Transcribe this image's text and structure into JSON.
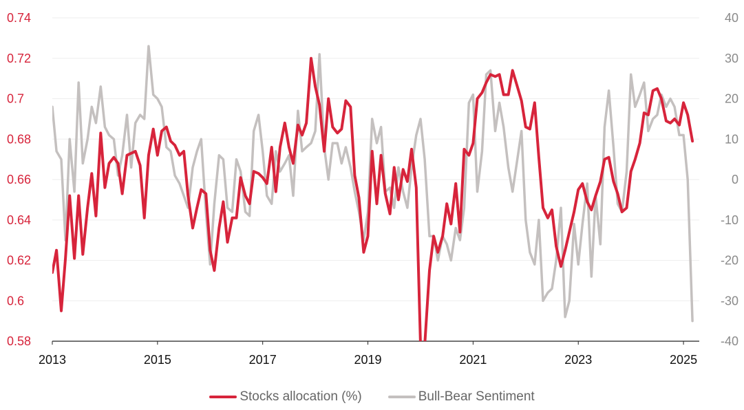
{
  "chart_data": {
    "type": "line",
    "x_range": [
      2013,
      2025.3
    ],
    "x_ticks": [
      "2013",
      "2015",
      "2017",
      "2019",
      "2021",
      "2023",
      "2025"
    ],
    "y_left": {
      "range": [
        0.58,
        0.74
      ],
      "ticks": [
        "0.58",
        "0.6",
        "0.62",
        "0.64",
        "0.66",
        "0.68",
        "0.7",
        "0.72",
        "0.74"
      ],
      "color": "#d7243b"
    },
    "y_right": {
      "range": [
        -40,
        40
      ],
      "ticks": [
        "-40",
        "-30",
        "-20",
        "-10",
        "0",
        "10",
        "20",
        "30",
        "40"
      ],
      "color": "#8a8a8a"
    },
    "grid": "horizontal",
    "legend_position": "bottom-center",
    "series": [
      {
        "name": "Stocks allocation (%)",
        "axis": "left",
        "color": "#d7243b",
        "x": [
          2013.0,
          2013.08,
          2013.17,
          2013.25,
          2013.33,
          2013.42,
          2013.5,
          2013.58,
          2013.67,
          2013.75,
          2013.83,
          2013.92,
          2014.0,
          2014.08,
          2014.17,
          2014.25,
          2014.33,
          2014.42,
          2014.5,
          2014.58,
          2014.67,
          2014.75,
          2014.83,
          2014.92,
          2015.0,
          2015.08,
          2015.17,
          2015.25,
          2015.33,
          2015.42,
          2015.5,
          2015.58,
          2015.67,
          2015.75,
          2015.83,
          2015.92,
          2016.0,
          2016.08,
          2016.17,
          2016.25,
          2016.33,
          2016.42,
          2016.5,
          2016.58,
          2016.67,
          2016.75,
          2016.83,
          2016.92,
          2017.0,
          2017.08,
          2017.17,
          2017.25,
          2017.33,
          2017.42,
          2017.5,
          2017.58,
          2017.67,
          2017.75,
          2017.83,
          2017.92,
          2018.0,
          2018.08,
          2018.17,
          2018.25,
          2018.33,
          2018.42,
          2018.5,
          2018.58,
          2018.67,
          2018.75,
          2018.83,
          2018.92,
          2019.0,
          2019.08,
          2019.17,
          2019.25,
          2019.33,
          2019.42,
          2019.5,
          2019.58,
          2019.67,
          2019.75,
          2019.83,
          2019.92,
          2020.0,
          2020.08,
          2020.17,
          2020.25,
          2020.33,
          2020.42,
          2020.5,
          2020.58,
          2020.67,
          2020.75,
          2020.83,
          2020.92,
          2021.0,
          2021.08,
          2021.17,
          2021.25,
          2021.33,
          2021.42,
          2021.5,
          2021.58,
          2021.67,
          2021.75,
          2021.83,
          2021.92,
          2022.0,
          2022.08,
          2022.17,
          2022.25,
          2022.33,
          2022.42,
          2022.5,
          2022.58,
          2022.67,
          2022.75,
          2022.83,
          2022.92,
          2023.0,
          2023.08,
          2023.17,
          2023.25,
          2023.33,
          2023.42,
          2023.5,
          2023.58,
          2023.67,
          2023.75,
          2023.83,
          2023.92,
          2024.0,
          2024.08,
          2024.17,
          2024.25,
          2024.33,
          2024.42,
          2024.5,
          2024.58,
          2024.67,
          2024.75,
          2024.83,
          2024.92,
          2025.0,
          2025.08,
          2025.17
        ],
        "values": [
          0.614,
          0.625,
          0.595,
          0.621,
          0.652,
          0.621,
          0.652,
          0.623,
          0.646,
          0.663,
          0.642,
          0.683,
          0.656,
          0.668,
          0.671,
          0.668,
          0.653,
          0.672,
          0.673,
          0.674,
          0.667,
          0.641,
          0.672,
          0.685,
          0.672,
          0.684,
          0.686,
          0.679,
          0.677,
          0.672,
          0.674,
          0.652,
          0.636,
          0.646,
          0.655,
          0.653,
          0.625,
          0.615,
          0.636,
          0.649,
          0.629,
          0.641,
          0.641,
          0.661,
          0.652,
          0.648,
          0.664,
          0.663,
          0.661,
          0.658,
          0.676,
          0.654,
          0.676,
          0.688,
          0.676,
          0.668,
          0.687,
          0.682,
          0.688,
          0.72,
          0.706,
          0.697,
          0.674,
          0.7,
          0.686,
          0.683,
          0.685,
          0.699,
          0.696,
          0.662,
          0.651,
          0.624,
          0.632,
          0.674,
          0.648,
          0.672,
          0.653,
          0.643,
          0.666,
          0.65,
          0.665,
          0.659,
          0.675,
          0.656,
          0.578,
          0.578,
          0.615,
          0.632,
          0.624,
          0.632,
          0.648,
          0.638,
          0.658,
          0.634,
          0.675,
          0.672,
          0.678,
          0.7,
          0.703,
          0.708,
          0.712,
          0.711,
          0.712,
          0.702,
          0.702,
          0.714,
          0.707,
          0.699,
          0.686,
          0.685,
          0.698,
          0.671,
          0.646,
          0.641,
          0.645,
          0.627,
          0.617,
          0.625,
          0.634,
          0.644,
          0.655,
          0.658,
          0.649,
          0.645,
          0.652,
          0.659,
          0.67,
          0.671,
          0.659,
          0.653,
          0.644,
          0.646,
          0.664,
          0.67,
          0.678,
          0.693,
          0.692,
          0.704,
          0.705,
          0.7,
          0.689,
          0.688,
          0.69,
          0.687,
          0.698,
          0.692,
          0.679
        ]
      },
      {
        "name": "Bull-Bear Sentiment",
        "axis": "right",
        "color": "#c4c0bf",
        "x": [
          2013.0,
          2013.08,
          2013.17,
          2013.25,
          2013.33,
          2013.42,
          2013.5,
          2013.58,
          2013.67,
          2013.75,
          2013.83,
          2013.92,
          2014.0,
          2014.08,
          2014.17,
          2014.25,
          2014.33,
          2014.42,
          2014.5,
          2014.58,
          2014.67,
          2014.75,
          2014.83,
          2014.92,
          2015.0,
          2015.08,
          2015.17,
          2015.25,
          2015.33,
          2015.42,
          2015.5,
          2015.58,
          2015.67,
          2015.75,
          2015.83,
          2015.92,
          2016.0,
          2016.08,
          2016.17,
          2016.25,
          2016.33,
          2016.42,
          2016.5,
          2016.58,
          2016.67,
          2016.75,
          2016.83,
          2016.92,
          2017.0,
          2017.08,
          2017.17,
          2017.25,
          2017.33,
          2017.42,
          2017.5,
          2017.58,
          2017.67,
          2017.75,
          2017.83,
          2017.92,
          2018.0,
          2018.08,
          2018.17,
          2018.25,
          2018.33,
          2018.42,
          2018.5,
          2018.58,
          2018.67,
          2018.75,
          2018.83,
          2018.92,
          2019.0,
          2019.08,
          2019.17,
          2019.25,
          2019.33,
          2019.42,
          2019.5,
          2019.58,
          2019.67,
          2019.75,
          2019.83,
          2019.92,
          2020.0,
          2020.08,
          2020.17,
          2020.25,
          2020.33,
          2020.42,
          2020.5,
          2020.58,
          2020.67,
          2020.75,
          2020.83,
          2020.92,
          2021.0,
          2021.08,
          2021.17,
          2021.25,
          2021.33,
          2021.42,
          2021.5,
          2021.58,
          2021.67,
          2021.75,
          2021.83,
          2021.92,
          2022.0,
          2022.08,
          2022.17,
          2022.25,
          2022.33,
          2022.42,
          2022.5,
          2022.58,
          2022.67,
          2022.75,
          2022.83,
          2022.92,
          2023.0,
          2023.08,
          2023.17,
          2023.25,
          2023.33,
          2023.42,
          2023.5,
          2023.58,
          2023.67,
          2023.75,
          2023.83,
          2023.92,
          2024.0,
          2024.08,
          2024.17,
          2024.25,
          2024.33,
          2024.42,
          2024.5,
          2024.58,
          2024.67,
          2024.75,
          2024.83,
          2024.92,
          2025.0,
          2025.08,
          2025.17
        ],
        "values": [
          18,
          7,
          5,
          -15,
          10,
          -3,
          24,
          4,
          10,
          18,
          14,
          23,
          13,
          11,
          10,
          1,
          6,
          16,
          3,
          14,
          16,
          15,
          33,
          21,
          20,
          18,
          8,
          7,
          1,
          -1,
          -4,
          -7,
          3,
          7,
          10,
          -8,
          -21,
          -6,
          6,
          5,
          -7,
          -8,
          5,
          2,
          -8,
          -9,
          12,
          16,
          7,
          -4,
          -6,
          7,
          2,
          4,
          6,
          -4,
          17,
          7,
          8,
          9,
          12,
          31,
          8,
          0,
          9,
          9,
          4,
          8,
          3,
          -3,
          -8,
          -15,
          -8,
          15,
          9,
          13,
          -3,
          -2,
          -7,
          3,
          -3,
          -7,
          3,
          11,
          15,
          5,
          -14,
          -14,
          -20,
          -14,
          -16,
          -20,
          -12,
          -15,
          -7,
          19,
          21,
          -3,
          7,
          26,
          27,
          12,
          19,
          13,
          3,
          -3,
          4,
          12,
          -10,
          -18,
          -21,
          -10,
          -30,
          -28,
          -27,
          -20,
          -7,
          -34,
          -30,
          -11,
          -21,
          -11,
          -1,
          -24,
          -4,
          -16,
          13,
          22,
          8,
          -6,
          -8,
          2,
          26,
          18,
          21,
          24,
          12,
          15,
          16,
          21,
          18,
          20,
          18,
          11,
          11,
          0,
          -35
        ]
      }
    ]
  }
}
